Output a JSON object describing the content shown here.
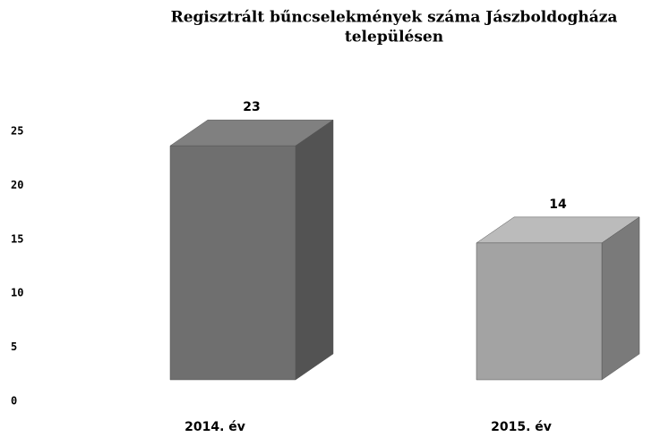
{
  "chart_data": {
    "type": "bar3d",
    "title_line1": "Regisztrált bűncselekmények száma Jászboldogháza",
    "title_line2": "településen",
    "categories": [
      "2014. év",
      "2015. év"
    ],
    "values": [
      23,
      14
    ],
    "colors": [
      "#6f6f6f",
      "#a3a3a3"
    ],
    "ylim": [
      0,
      25
    ],
    "yticks": [
      0,
      5,
      10,
      15,
      20,
      25
    ]
  }
}
